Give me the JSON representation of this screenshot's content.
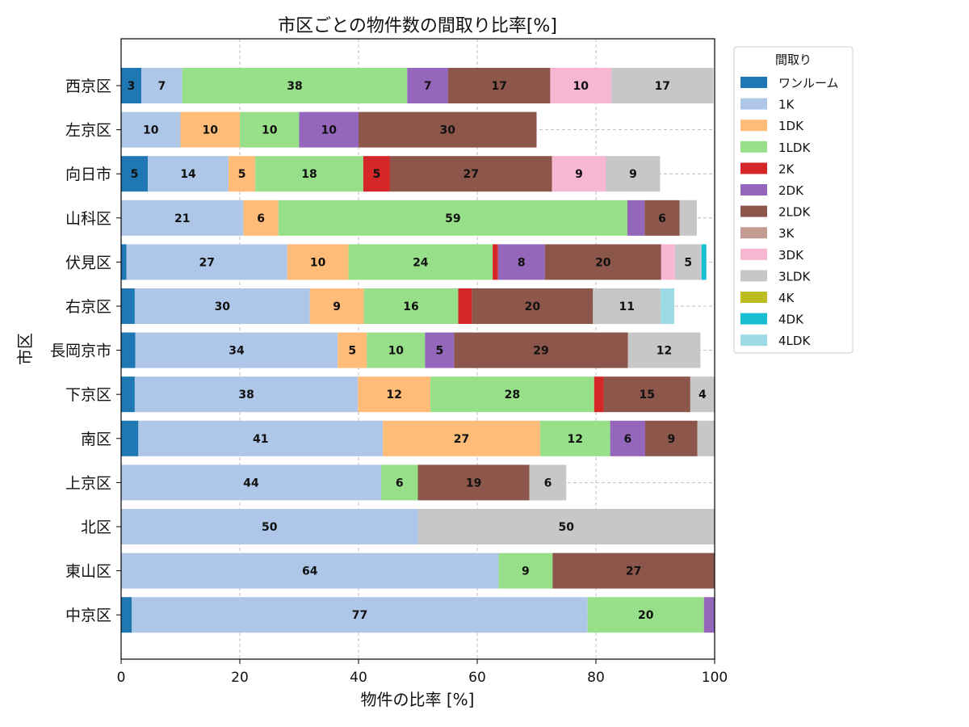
{
  "chart_data": {
    "type": "bar",
    "orientation": "horizontal",
    "stacked": true,
    "title": "市区ごとの物件数の間取り比率[%]",
    "xlabel": "物件の比率 [%]",
    "ylabel": "市区",
    "xlim": [
      0,
      100
    ],
    "xticks": [
      "0",
      "20",
      "40",
      "60",
      "80",
      "100"
    ],
    "grid": true,
    "legend_title": "間取り",
    "legend_position": "outside-top-right",
    "categories": [
      "西京区",
      "左京区",
      "向日市",
      "山科区",
      "伏見区",
      "右京区",
      "長岡京市",
      "下京区",
      "南区",
      "上京区",
      "北区",
      "東山区",
      "中京区"
    ],
    "series": [
      {
        "name": "ワンルーム",
        "color": "#1f77b4",
        "values": [
          3.4,
          0,
          4.5,
          0,
          0.9,
          2.3,
          2.4,
          2.3,
          2.9,
          0,
          0,
          0,
          1.8
        ]
      },
      {
        "name": "1K",
        "color": "#aec7e8",
        "values": [
          6.9,
          10,
          13.6,
          20.6,
          27.1,
          29.5,
          34.1,
          37.6,
          41.2,
          43.8,
          50,
          63.6,
          76.8
        ]
      },
      {
        "name": "1DK",
        "color": "#ffbb78",
        "values": [
          0,
          10,
          4.5,
          5.9,
          10.3,
          9.1,
          4.9,
          12.2,
          26.5,
          0,
          0,
          0,
          0
        ]
      },
      {
        "name": "1LDK",
        "color": "#98df8a",
        "values": [
          37.9,
          10,
          18.2,
          58.8,
          24.3,
          15.9,
          9.8,
          27.6,
          11.8,
          6.2,
          0,
          9.1,
          19.6
        ]
      },
      {
        "name": "2K",
        "color": "#d62728",
        "values": [
          0,
          0,
          4.5,
          0,
          0.9,
          2.3,
          0,
          1.6,
          0,
          0,
          0,
          0,
          0
        ]
      },
      {
        "name": "2DK",
        "color": "#9467bd",
        "values": [
          6.9,
          10,
          0,
          2.9,
          7.9,
          0,
          4.9,
          0,
          5.9,
          0,
          0,
          0,
          1.8
        ]
      },
      {
        "name": "2LDK",
        "color": "#8c564b",
        "values": [
          17.2,
          30,
          27.3,
          5.9,
          19.6,
          20.4,
          29.3,
          14.6,
          8.8,
          18.8,
          0,
          27.3,
          0
        ]
      },
      {
        "name": "3K",
        "color": "#c49c94",
        "values": [
          0,
          0,
          0,
          0,
          0,
          0,
          0,
          0,
          0,
          0,
          0,
          0,
          0
        ]
      },
      {
        "name": "3DK",
        "color": "#f7b6d2",
        "values": [
          10.3,
          0,
          9.1,
          0,
          2.3,
          0,
          0,
          0,
          0,
          0,
          0,
          0,
          0
        ]
      },
      {
        "name": "3LDK",
        "color": "#c7c7c7",
        "values": [
          17.2,
          0,
          9.1,
          2.9,
          4.5,
          11.4,
          12.2,
          4.1,
          2.9,
          6.2,
          50,
          0,
          0
        ]
      },
      {
        "name": "4K",
        "color": "#bcbd22",
        "values": [
          0,
          0,
          0,
          0,
          0,
          0,
          0,
          0,
          0,
          0,
          0,
          0,
          0
        ]
      },
      {
        "name": "4DK",
        "color": "#17becf",
        "values": [
          0,
          0,
          0,
          0,
          0.8,
          0,
          0,
          0,
          0,
          0,
          0,
          0,
          0
        ]
      },
      {
        "name": "4LDK",
        "color": "#9edae5",
        "values": [
          0,
          0,
          0,
          0,
          0,
          2.3,
          0,
          0,
          0,
          0,
          0,
          0,
          0
        ]
      }
    ]
  }
}
